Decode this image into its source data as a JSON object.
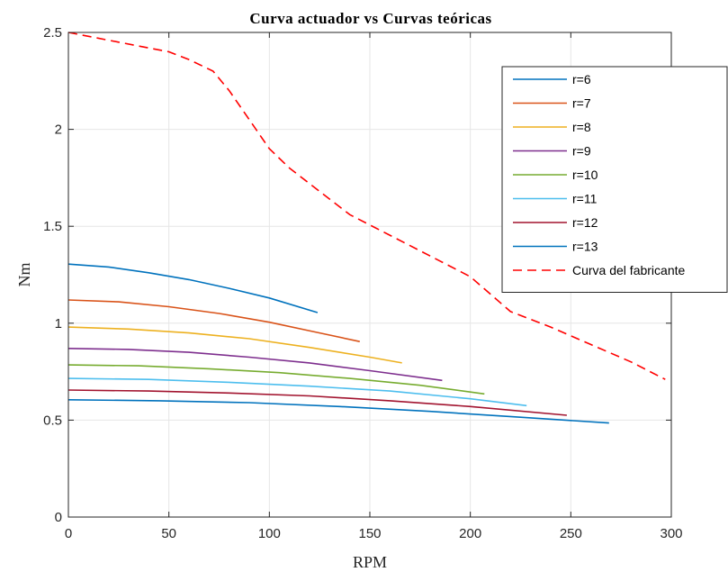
{
  "chart_data": {
    "type": "line",
    "title": "Curva actuador vs Curvas teóricas",
    "xlabel": "RPM",
    "ylabel": "Nm",
    "xlim": [
      0,
      300
    ],
    "ylim": [
      0,
      2.5
    ],
    "xticks": [
      "0",
      "50",
      "100",
      "150",
      "200",
      "250",
      "300"
    ],
    "yticks": [
      "0",
      "0.5",
      "1",
      "1.5",
      "2",
      "2.5"
    ],
    "grid": true,
    "legend_position": "top-right",
    "series": [
      {
        "name": "r=6",
        "color": "#0072BD",
        "dash": "solid",
        "x": [
          0,
          20,
          40,
          60,
          80,
          100,
          124
        ],
        "y": [
          1.305,
          1.29,
          1.26,
          1.225,
          1.18,
          1.13,
          1.055
        ]
      },
      {
        "name": "r=7",
        "color": "#D95319",
        "dash": "solid",
        "x": [
          0,
          25,
          50,
          75,
          100,
          125,
          145
        ],
        "y": [
          1.12,
          1.11,
          1.085,
          1.05,
          1.005,
          0.95,
          0.905
        ]
      },
      {
        "name": "r=8",
        "color": "#EDB120",
        "dash": "solid",
        "x": [
          0,
          30,
          60,
          90,
          120,
          150,
          166
        ],
        "y": [
          0.98,
          0.97,
          0.95,
          0.92,
          0.875,
          0.825,
          0.795
        ]
      },
      {
        "name": "r=9",
        "color": "#7E2F8E",
        "dash": "solid",
        "x": [
          0,
          30,
          60,
          90,
          120,
          150,
          186
        ],
        "y": [
          0.87,
          0.865,
          0.85,
          0.825,
          0.795,
          0.755,
          0.705
        ]
      },
      {
        "name": "r=10",
        "color": "#77AC30",
        "dash": "solid",
        "x": [
          0,
          35,
          70,
          105,
          140,
          175,
          207
        ],
        "y": [
          0.785,
          0.78,
          0.765,
          0.745,
          0.715,
          0.68,
          0.635
        ]
      },
      {
        "name": "r=11",
        "color": "#4DBEEE",
        "dash": "solid",
        "x": [
          0,
          40,
          80,
          120,
          160,
          200,
          228
        ],
        "y": [
          0.715,
          0.71,
          0.695,
          0.675,
          0.65,
          0.61,
          0.575
        ]
      },
      {
        "name": "r=12",
        "color": "#A2142F",
        "dash": "solid",
        "x": [
          0,
          40,
          80,
          120,
          160,
          200,
          248
        ],
        "y": [
          0.655,
          0.65,
          0.64,
          0.625,
          0.6,
          0.57,
          0.525
        ]
      },
      {
        "name": "r=13",
        "color": "#0072BD",
        "dash": "solid",
        "x": [
          0,
          45,
          90,
          135,
          180,
          225,
          269
        ],
        "y": [
          0.605,
          0.6,
          0.59,
          0.57,
          0.545,
          0.515,
          0.485
        ]
      },
      {
        "name": "Curva del fabricante",
        "color": "#FF0000",
        "dash": "dashed",
        "x": [
          0,
          25,
          50,
          60,
          72,
          80,
          90,
          100,
          110,
          125,
          140,
          155,
          170,
          185,
          200,
          210,
          220,
          240,
          260,
          280,
          297
        ],
        "y": [
          2.5,
          2.45,
          2.4,
          2.36,
          2.3,
          2.2,
          2.05,
          1.9,
          1.8,
          1.68,
          1.56,
          1.48,
          1.4,
          1.32,
          1.24,
          1.15,
          1.06,
          0.98,
          0.89,
          0.8,
          0.71
        ]
      }
    ]
  }
}
